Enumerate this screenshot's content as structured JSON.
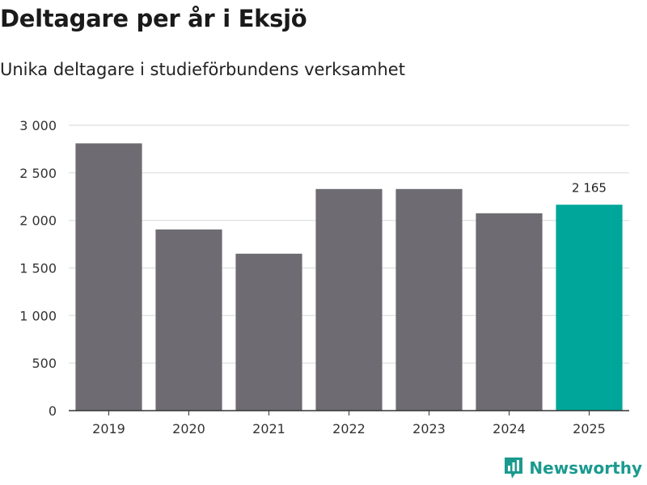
{
  "header": {
    "title": "Deltagare per år i Eksjö",
    "subtitle": "Unika deltagare i studieförbundens verksamhet"
  },
  "chart_data": {
    "type": "bar",
    "title": "Deltagare per år i Eksjö",
    "subtitle": "Unika deltagare i studieförbundens verksamhet",
    "xlabel": "",
    "ylabel": "",
    "categories": [
      "2019",
      "2020",
      "2021",
      "2022",
      "2023",
      "2024",
      "2025"
    ],
    "values": [
      2810,
      1905,
      1650,
      2330,
      2330,
      2075,
      2165
    ],
    "ylim": [
      0,
      3000
    ],
    "yticks": [
      0,
      500,
      1000,
      1500,
      2000,
      2500,
      3000
    ],
    "ytick_labels": [
      "0",
      "500",
      "1 000",
      "1 500",
      "2 000",
      "2 500",
      "3 000"
    ],
    "data_labels": [
      {
        "index": 6,
        "text": "2 165"
      }
    ],
    "grid": true,
    "colors": {
      "bar": "#6e6c72",
      "highlight": "#00a69a",
      "grid": "#dddddd",
      "axis": "#333333"
    },
    "highlight_index": 6
  },
  "brand": {
    "name": "Newsworthy",
    "icon": "bar-chart-logo-icon",
    "color": "#1a9a8f"
  }
}
